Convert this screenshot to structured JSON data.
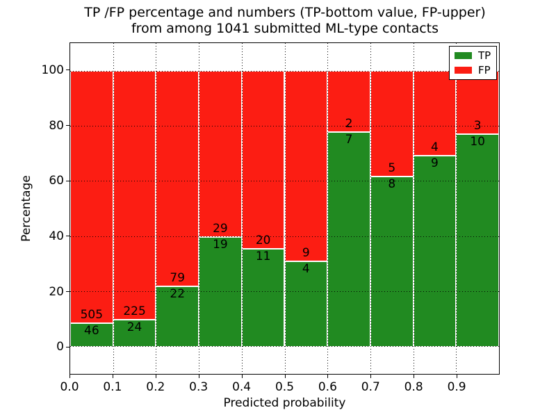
{
  "figure": {
    "title_line1": "TP /FP percentage and numbers (TP-bottom value, FP-upper)",
    "title_line2": "from among 1041 submitted ML-type contacts",
    "background": "#ffffff",
    "total_contacts": "1041"
  },
  "chart_data": {
    "type": "bar",
    "stacked": true,
    "orientation": "vertical",
    "title": "TP /FP percentage and numbers (TP-bottom value, FP-upper)\nfrom among 1041 submitted ML-type contacts",
    "xlabel": "Predicted probability",
    "ylabel": "Percentage",
    "xlim": [
      0.0,
      1.0
    ],
    "ylim": [
      -10,
      110
    ],
    "xticks": [
      "0.0",
      "0.1",
      "0.2",
      "0.3",
      "0.4",
      "0.5",
      "0.6",
      "0.7",
      "0.8",
      "0.9"
    ],
    "yticks": [
      0,
      20,
      40,
      60,
      80,
      100
    ],
    "bin_edges": [
      0.0,
      0.1,
      0.2,
      0.3,
      0.4,
      0.5,
      0.6,
      0.7,
      0.8,
      0.9,
      1.0
    ],
    "grid": true,
    "grid_style": "dotted black, drawn above bars",
    "bar_edge_color": "#ffffff",
    "legend_position": "upper right",
    "note": "each bin stacked to 100%; green TP share = tp/(tp+fp)",
    "series": [
      {
        "name": "TP",
        "color": "#218a21",
        "values": [
          46,
          24,
          22,
          19,
          11,
          4,
          7,
          8,
          9,
          10
        ]
      },
      {
        "name": "FP",
        "color": "#fc1d13",
        "values": [
          505,
          225,
          79,
          29,
          20,
          9,
          2,
          5,
          4,
          3
        ]
      }
    ]
  }
}
